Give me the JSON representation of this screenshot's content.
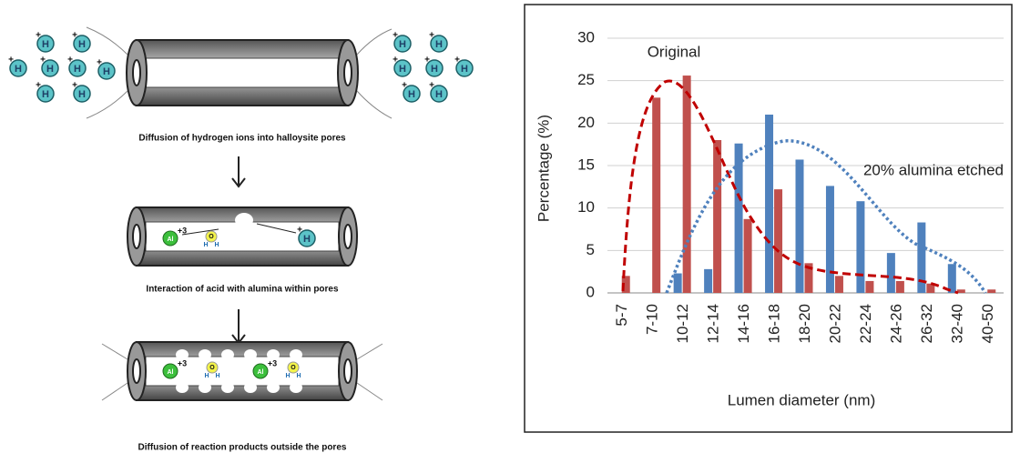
{
  "diagram": {
    "captions": [
      "Diffusion of hydrogen ions into halloysite pores",
      "Interaction of acid with alumina within pores",
      "Diffusion of reaction products outside the pores"
    ],
    "ions": {
      "hydrogen": "H",
      "proton_charge": "+",
      "aluminum": "Al",
      "aluminum_charge": "+3",
      "oxygen": "O"
    }
  },
  "chart_data": {
    "type": "bar",
    "x_label": "Lumen diameter (nm)",
    "y_label": "Percentage (%)",
    "categories": [
      "5-7",
      "7-10",
      "10-12",
      "12-14",
      "14-16",
      "16-18",
      "18-20",
      "20-22",
      "22-24",
      "24-26",
      "26-32",
      "32-40",
      "40-50"
    ],
    "series": [
      {
        "name": "20% alumina etched",
        "color": "#4f81bd",
        "values": [
          0,
          0,
          2.3,
          2.8,
          17.6,
          21,
          15.7,
          12.6,
          10.8,
          4.7,
          8.3,
          3.4,
          0
        ]
      },
      {
        "name": "Original",
        "color": "#c0504d",
        "values": [
          2,
          23,
          25.6,
          18,
          8.7,
          12.2,
          3.5,
          2,
          1.4,
          1.4,
          1.1,
          0.4,
          0.4
        ]
      }
    ],
    "ylim": [
      0,
      30
    ],
    "yticks": [
      0,
      5,
      10,
      15,
      20,
      25,
      30
    ],
    "grid": true
  }
}
